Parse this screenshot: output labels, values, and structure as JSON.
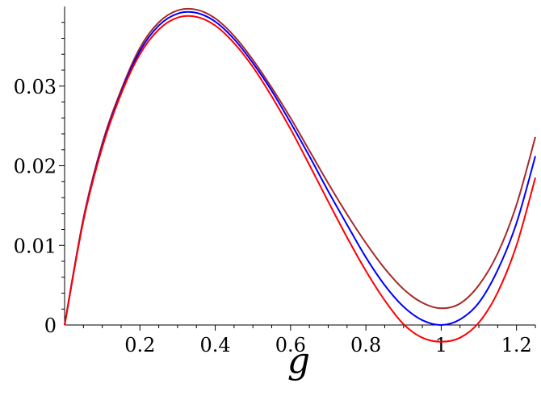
{
  "chart_data": {
    "type": "line",
    "title": "",
    "xlabel": "g",
    "ylabel": "",
    "xlim": [
      0,
      1.25
    ],
    "ylim": [
      0,
      0.04
    ],
    "grid": false,
    "legend": "none",
    "x_ticks": [
      0.2,
      0.4,
      0.6,
      0.8,
      1,
      1.2
    ],
    "x_tick_labels": [
      "0.2",
      "0.4",
      "0.6",
      "0.8",
      "1",
      "1.2"
    ],
    "y_ticks": [
      0,
      0.01,
      0.02,
      0.03
    ],
    "y_tick_labels": [
      "0",
      "0.01",
      "0.02",
      "0.03"
    ],
    "x": [
      0,
      0.05,
      0.1,
      0.15,
      0.2,
      0.25,
      0.3,
      0.35,
      0.4,
      0.45,
      0.5,
      0.55,
      0.6,
      0.65,
      0.7,
      0.75,
      0.8,
      0.85,
      0.9,
      0.95,
      1.0,
      1.05,
      1.1,
      1.15,
      1.2,
      1.25
    ],
    "series": [
      {
        "color": "#a52a2a",
        "values": [
          0,
          0.0134,
          0.0228,
          0.0295,
          0.0348,
          0.038,
          0.0395,
          0.0396,
          0.0385,
          0.0363,
          0.0333,
          0.0298,
          0.026,
          0.0219,
          0.0178,
          0.0139,
          0.0103,
          0.0071,
          0.0045,
          0.0028,
          0.0021,
          0.0027,
          0.005,
          0.009,
          0.0151,
          0.0236
        ]
      },
      {
        "color": "#0000ff",
        "values": [
          0,
          0.0132,
          0.0225,
          0.0292,
          0.0344,
          0.0376,
          0.0391,
          0.0392,
          0.0381,
          0.0359,
          0.0329,
          0.0294,
          0.0254,
          0.0212,
          0.0168,
          0.0126,
          0.0085,
          0.005,
          0.0023,
          0.0006,
          0.0,
          0.0007,
          0.0028,
          0.0069,
          0.0128,
          0.0212
        ]
      },
      {
        "color": "#ff0000",
        "values": [
          0,
          0.0131,
          0.0223,
          0.029,
          0.034,
          0.0371,
          0.0386,
          0.0387,
          0.0376,
          0.0354,
          0.0324,
          0.0287,
          0.0246,
          0.0201,
          0.0155,
          0.011,
          0.0068,
          0.0031,
          0.0001,
          -0.0016,
          -0.0021,
          -0.0016,
          0.0003,
          0.0041,
          0.01,
          0.0185
        ]
      }
    ]
  }
}
